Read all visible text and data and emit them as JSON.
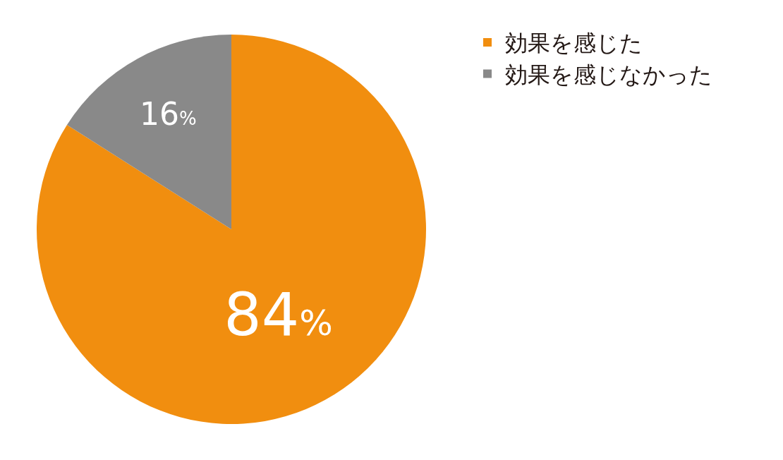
{
  "chart_data": {
    "type": "pie",
    "categories": [
      "効果を感じた",
      "効果を感じなかった"
    ],
    "values": [
      84,
      16
    ],
    "colors": [
      "#f18e0f",
      "#898989"
    ],
    "value_labels": [
      "84%",
      "16%"
    ],
    "legend": "top right"
  }
}
